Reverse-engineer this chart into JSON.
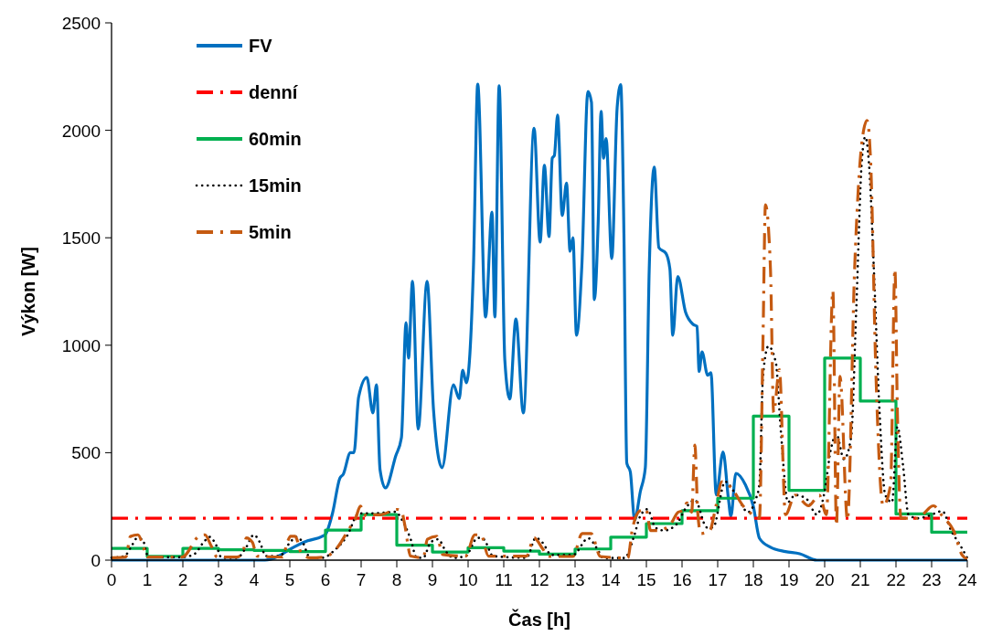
{
  "chart_data": {
    "type": "line",
    "xlabel": "Čas [h]",
    "ylabel": "Výkon [W]",
    "xlim": [
      0,
      24
    ],
    "xticks": [
      0,
      1,
      2,
      3,
      4,
      5,
      6,
      7,
      8,
      9,
      10,
      11,
      12,
      13,
      14,
      15,
      16,
      17,
      18,
      19,
      20,
      21,
      22,
      23,
      24
    ],
    "ylim": [
      0,
      2500
    ],
    "yticks": [
      0,
      500,
      1000,
      1500,
      2000,
      2500
    ],
    "grid": false,
    "legend": "top left",
    "marker": "none",
    "series": [
      {
        "name": "FV",
        "color": "#0070c0",
        "line_style": "solid",
        "x": [
          0,
          4.3,
          4.7,
          5.0,
          5.5,
          5.9,
          6.0,
          6.2,
          6.4,
          6.5,
          6.7,
          6.8,
          6.93,
          7.16,
          7.33,
          7.43,
          7.53,
          7.68,
          7.97,
          8.13,
          8.26,
          8.33,
          8.44,
          8.6,
          8.85,
          9.03,
          9.27,
          9.59,
          9.75,
          9.85,
          9.95,
          10.15,
          10.27,
          10.49,
          10.67,
          10.75,
          10.87,
          11.03,
          11.17,
          11.34,
          11.55,
          11.85,
          12.02,
          12.14,
          12.27,
          12.36,
          12.42,
          12.51,
          12.64,
          12.76,
          12.86,
          12.94,
          13.04,
          13.19,
          13.36,
          13.46,
          13.54,
          13.65,
          13.73,
          13.8,
          13.87,
          14.03,
          14.18,
          14.28,
          14.37,
          14.45,
          14.55,
          14.67,
          14.83,
          14.97,
          15.08,
          15.22,
          15.35,
          15.55,
          15.66,
          15.74,
          15.88,
          16.1,
          16.31,
          16.42,
          16.48,
          16.56,
          16.72,
          16.81,
          16.96,
          17.15,
          17.3,
          17.37,
          17.51,
          17.77,
          18.0,
          18.17,
          18.47,
          18.9,
          19.3,
          19.78,
          24
        ],
        "values": [
          0,
          0,
          20,
          50,
          90,
          110,
          120,
          220,
          380,
          400,
          500,
          500,
          759,
          850,
          685,
          816,
          421,
          336,
          485,
          570,
          1105,
          940,
          1297,
          610,
          1297,
          700,
          430,
          816,
          752,
          884,
          825,
          1363,
          2215,
          1131,
          1620,
          1131,
          2207,
          931,
          750,
          1122,
          685,
          2010,
          1480,
          1837,
          1505,
          1870,
          1883,
          2071,
          1603,
          1754,
          1437,
          1500,
          1046,
          1370,
          2181,
          2130,
          1212,
          1580,
          2088,
          1870,
          1962,
          1403,
          2105,
          2213,
          1522,
          453,
          410,
          187,
          319,
          430,
          1354,
          1829,
          1454,
          1427,
          1354,
          1046,
          1320,
          1153,
          1097,
          1088,
          878,
          969,
          860,
          872,
          303,
          503,
          287,
          204,
          404,
          353,
          250,
          102,
          61,
          40,
          30,
          0,
          0
        ]
      },
      {
        "name": "denní",
        "color": "#ff0000",
        "line_style": "dashed",
        "x": [
          0,
          24
        ],
        "values": [
          195,
          195
        ]
      },
      {
        "name": "60min",
        "color": "#00b050",
        "type": "step",
        "line_style": "solid",
        "x": [
          0,
          1,
          2,
          3,
          4,
          5,
          6,
          7,
          8,
          9,
          10,
          11,
          12,
          13,
          14,
          15,
          16,
          17,
          18,
          19,
          20,
          21,
          22,
          23,
          24
        ],
        "values": [
          55,
          18,
          55,
          48,
          45,
          40,
          140,
          212,
          70,
          38,
          58,
          42,
          28,
          52,
          107,
          170,
          230,
          288,
          670,
          325,
          940,
          740,
          215,
          130,
          130
        ]
      },
      {
        "name": "15min",
        "color": "#000000",
        "line_style": "dotted",
        "x": [
          0,
          0.36,
          0.57,
          0.7,
          0.87,
          1.0,
          1.17,
          1.98,
          2.32,
          2.58,
          2.75,
          2.92,
          3.09,
          3.52,
          3.78,
          3.99,
          4.16,
          4.33,
          4.72,
          4.97,
          5.19,
          5.36,
          5.57,
          5.91,
          6.26,
          6.6,
          6.94,
          7.37,
          7.97,
          8.14,
          8.39,
          8.56,
          8.74,
          8.95,
          9.16,
          9.38,
          9.59,
          9.93,
          10.27,
          10.44,
          10.7,
          11.64,
          11.9,
          12.09,
          12.34,
          12.94,
          13.37,
          13.62,
          13.79,
          14.39,
          14.65,
          14.82,
          15.03,
          15.25,
          15.5,
          15.84,
          16.14,
          16.36,
          16.7,
          16.87,
          17.21,
          17.55,
          17.85,
          18.06,
          18.17,
          18.27,
          18.42,
          18.63,
          18.77,
          18.97,
          19.17,
          19.48,
          19.78,
          19.98,
          20.18,
          20.33,
          20.54,
          20.74,
          20.89,
          21.04,
          21.14,
          21.24,
          21.38,
          21.54,
          21.7,
          21.89,
          22.04,
          22.2,
          22.35,
          22.6,
          22.9,
          23.3,
          23.55,
          23.8,
          24
        ],
        "values": [
          11,
          19,
          68,
          100,
          97,
          26,
          14,
          14,
          28,
          83,
          108,
          75,
          11,
          11,
          61,
          118,
          83,
          19,
          19,
          75,
          108,
          83,
          11,
          11,
          47,
          111,
          218,
          218,
          225,
          189,
          97,
          11,
          11,
          83,
          97,
          40,
          11,
          19,
          104,
          97,
          19,
          11,
          104,
          81,
          24,
          24,
          102,
          53,
          10,
          10,
          109,
          202,
          237,
          152,
          138,
          166,
          251,
          280,
          152,
          152,
          365,
          294,
          223,
          280,
          353,
          855,
          995,
          920,
          604,
          270,
          303,
          287,
          212,
          303,
          520,
          587,
          470,
          570,
          1186,
          1853,
          1970,
          1853,
          1354,
          687,
          303,
          270,
          621,
          438,
          212,
          195,
          205,
          228,
          136,
          70,
          10
        ]
      },
      {
        "name": "5min",
        "color": "#c55a11",
        "line_style": "dashed",
        "x": [
          0,
          0.4,
          0.53,
          0.74,
          0.87,
          1.0,
          1.98,
          2.45,
          2.62,
          2.79,
          2.97,
          3.52,
          3.69,
          3.78,
          3.95,
          4.08,
          4.8,
          4.93,
          5.02,
          5.15,
          5.32,
          5.57,
          5.96,
          6.34,
          6.64,
          6.85,
          6.98,
          7.15,
          7.32,
          7.54,
          8.01,
          8.14,
          8.22,
          8.39,
          8.74,
          8.86,
          9.12,
          9.29,
          9.93,
          10.19,
          10.36,
          10.57,
          11.64,
          11.85,
          12.09,
          12.26,
          12.94,
          13.2,
          13.45,
          13.71,
          14.48,
          14.6,
          14.82,
          14.99,
          15.12,
          15.33,
          15.67,
          15.89,
          16.01,
          16.14,
          16.27,
          16.36,
          16.44,
          16.53,
          16.78,
          16.95,
          17.12,
          17.38,
          17.72,
          17.89,
          18.17,
          18.27,
          18.34,
          18.48,
          18.57,
          18.73,
          18.9,
          19.17,
          19.55,
          19.85,
          20.05,
          20.23,
          20.33,
          20.43,
          20.64,
          20.84,
          21.04,
          21.19,
          21.29,
          21.44,
          21.64,
          21.85,
          21.97,
          22.04,
          22.14,
          22.6,
          23.05,
          23.3,
          23.62,
          23.85,
          24
        ],
        "values": [
          11,
          14,
          111,
          118,
          75,
          14,
          14,
          111,
          118,
          68,
          14,
          14,
          40,
          104,
          83,
          19,
          14,
          83,
          111,
          111,
          33,
          11,
          14,
          61,
          140,
          197,
          251,
          204,
          211,
          211,
          236,
          225,
          168,
          19,
          11,
          97,
          111,
          26,
          19,
          118,
          118,
          19,
          19,
          104,
          53,
          17,
          17,
          124,
          124,
          17,
          10,
          138,
          230,
          237,
          138,
          138,
          166,
          223,
          230,
          266,
          223,
          535,
          223,
          124,
          138,
          251,
          365,
          337,
          251,
          223,
          195,
          1021,
          1654,
          1354,
          687,
          886,
          212,
          303,
          253,
          303,
          212,
          1254,
          161,
          855,
          187,
          1354,
          1938,
          2046,
          1853,
          855,
          253,
          353,
          1354,
          687,
          195,
          195,
          253,
          205,
          136,
          25,
          5
        ]
      }
    ]
  }
}
